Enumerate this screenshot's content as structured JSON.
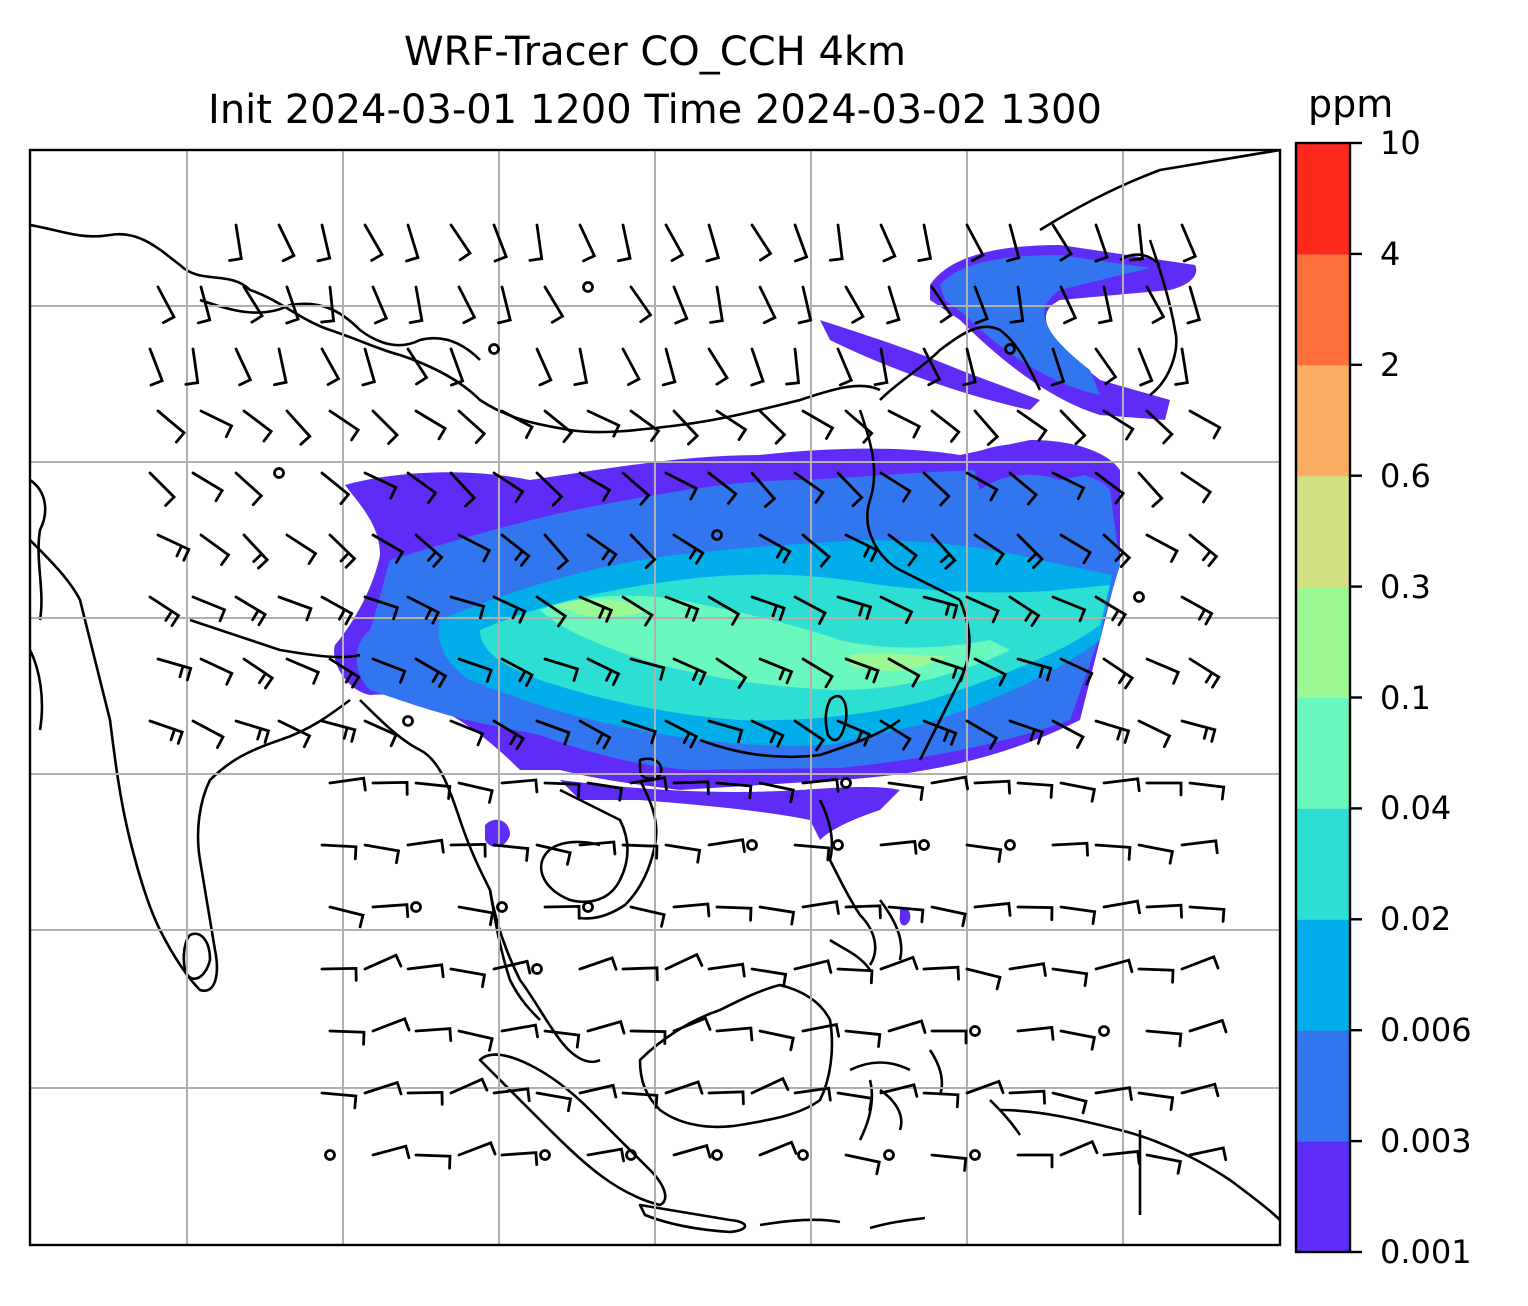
{
  "title": {
    "line1": "WRF-Tracer CO_CCH 4km",
    "line2": "Init 2024-03-01 1200 Time 2024-03-02 1300"
  },
  "colorbar": {
    "unit": "ppm",
    "ticks": [
      "0.001",
      "0.003",
      "0.006",
      "0.02",
      "0.04",
      "0.1",
      "0.3",
      "0.6",
      "2",
      "4",
      "10"
    ],
    "colors": [
      "#5f2cf7",
      "#3276ef",
      "#02aee9",
      "#2ddfd3",
      "#69f8bd",
      "#9bf895",
      "#d0e083",
      "#fdad61",
      "#fe713a",
      "#fd291d"
    ]
  },
  "map": {
    "gridlines": true,
    "barb_color": "#000000",
    "coast_color": "#000000",
    "grid_color": "#b0b0b0"
  }
}
